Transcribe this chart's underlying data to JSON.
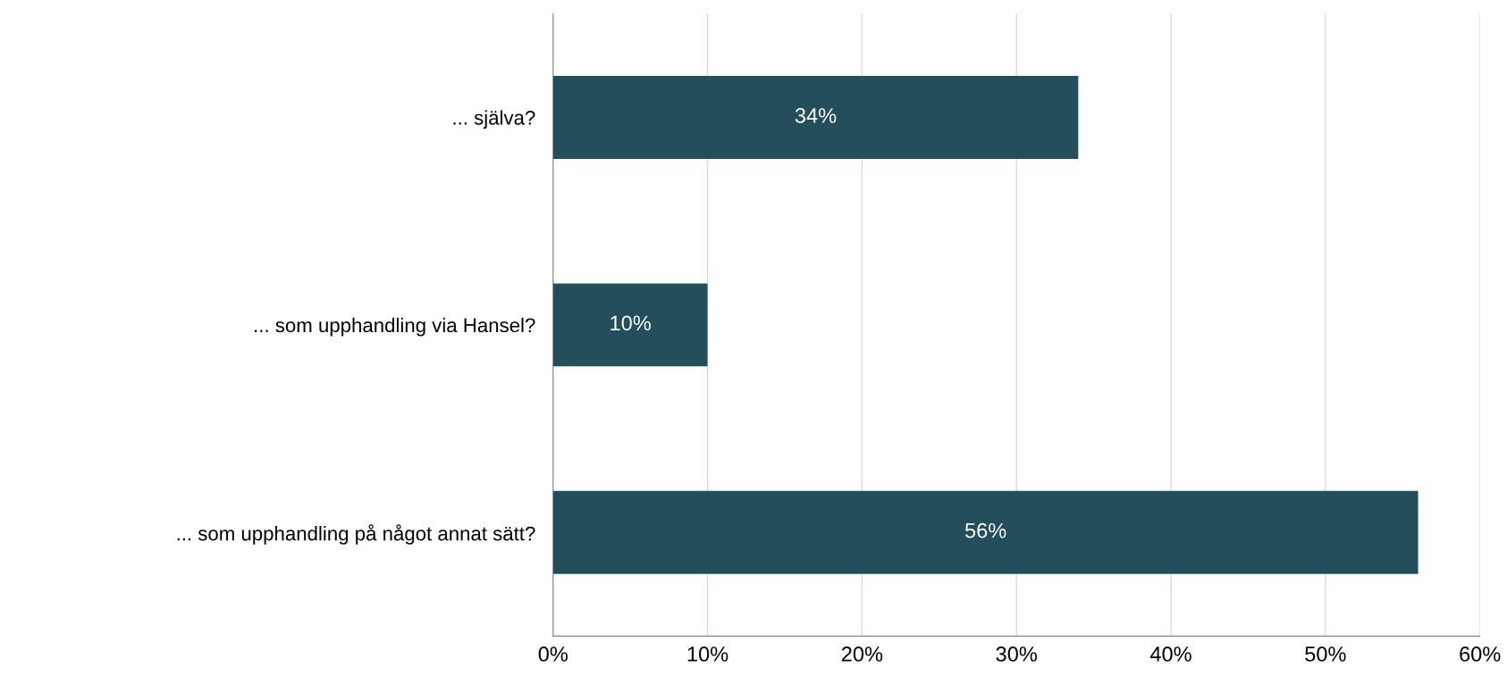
{
  "chart_data": {
    "type": "bar",
    "orientation": "horizontal",
    "categories": [
      "... själva?",
      "... som upphandling via Hansel?",
      "... som upphandling på något annat sätt?"
    ],
    "values": [
      34,
      10,
      56
    ],
    "color": "#234e5c",
    "value_labels": [
      "34%",
      "10%",
      "56%"
    ],
    "xlim": [
      0,
      60
    ],
    "xticks": [
      {
        "value": 0,
        "label": "0%"
      },
      {
        "value": 10,
        "label": "10%"
      },
      {
        "value": 20,
        "label": "20%"
      },
      {
        "value": 30,
        "label": "30%"
      },
      {
        "value": 40,
        "label": "40%"
      },
      {
        "value": 50,
        "label": "50%"
      },
      {
        "value": 60,
        "label": "60%"
      }
    ],
    "grid": "x",
    "legend": false
  }
}
